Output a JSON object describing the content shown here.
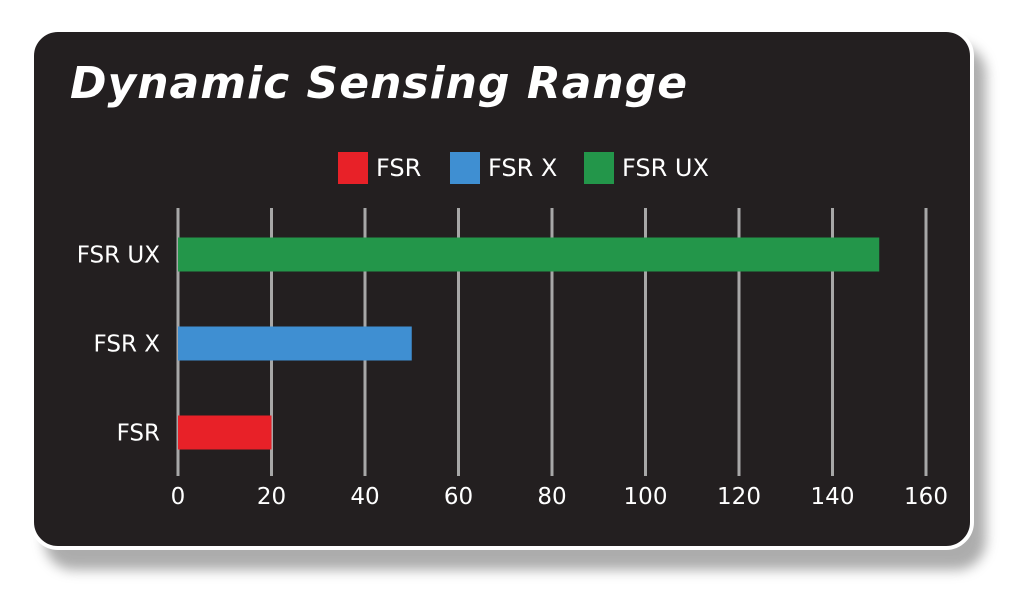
{
  "chart_data": {
    "type": "bar",
    "orientation": "horizontal",
    "title": "Dynamic Sensing Range",
    "categories": [
      "FSR UX",
      "FSR X",
      "FSR"
    ],
    "values": [
      150,
      50,
      20
    ],
    "colors": [
      "#23964a",
      "#3f8fd2",
      "#e82128"
    ],
    "xlim": [
      0,
      160
    ],
    "xticks": [
      0,
      20,
      40,
      60,
      80,
      100,
      120,
      140,
      160
    ],
    "grid": true,
    "legend_position": "top",
    "legend": [
      {
        "label": "FSR",
        "color": "#e82128"
      },
      {
        "label": "FSR X",
        "color": "#3f8fd2"
      },
      {
        "label": "FSR UX",
        "color": "#23964a"
      }
    ]
  }
}
